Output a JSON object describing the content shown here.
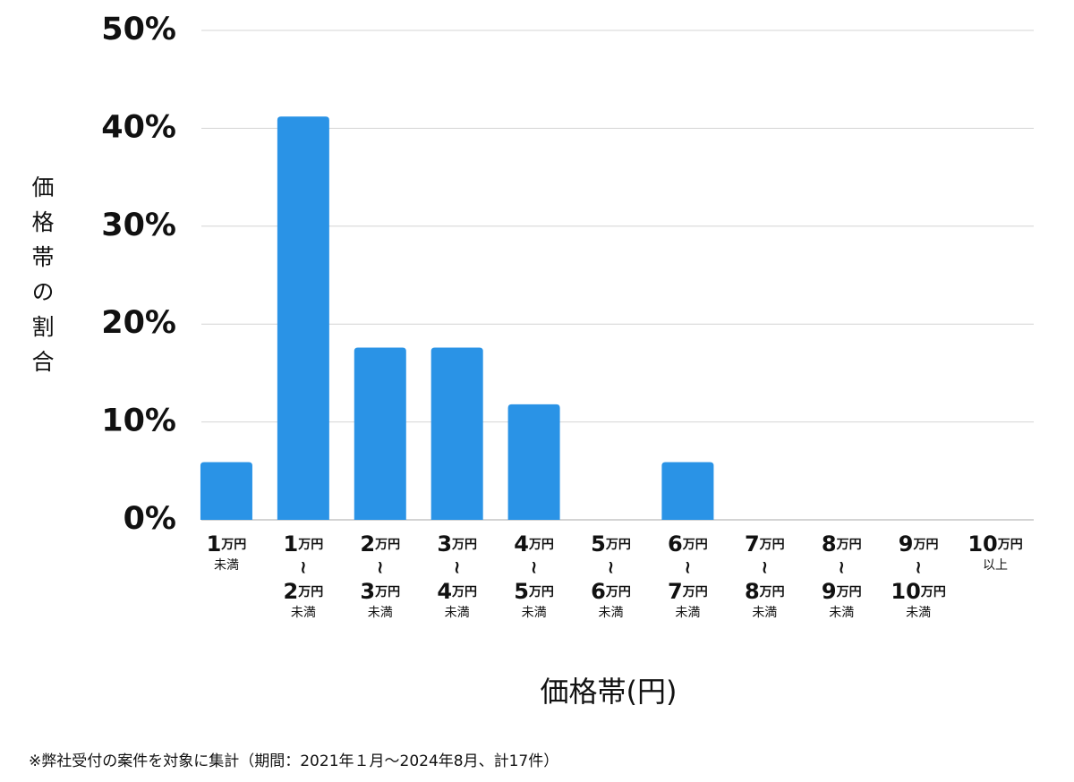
{
  "chart_data": {
    "type": "bar",
    "y_label": "価格帯の割合",
    "x_label": "価格帯(円)",
    "footnote": "※弊社受付の案件を対象に集計（期間：2021年１月〜2024年8月、計17件）",
    "categories": [
      [
        "1万円",
        "未満"
      ],
      [
        "1万円",
        "≀",
        "2万円",
        "未満"
      ],
      [
        "2万円",
        "≀",
        "3万円",
        "未満"
      ],
      [
        "3万円",
        "≀",
        "4万円",
        "未満"
      ],
      [
        "4万円",
        "≀",
        "5万円",
        "未満"
      ],
      [
        "5万円",
        "≀",
        "6万円",
        "未満"
      ],
      [
        "6万円",
        "≀",
        "7万円",
        "未満"
      ],
      [
        "7万円",
        "≀",
        "8万円",
        "未満"
      ],
      [
        "8万円",
        "≀",
        "9万円",
        "未満"
      ],
      [
        "9万円",
        "≀",
        "10万円",
        "未満"
      ],
      [
        "10万円",
        "以上"
      ]
    ],
    "values": [
      5.9,
      41.2,
      17.6,
      17.6,
      11.8,
      0,
      5.9,
      0,
      0,
      0,
      0
    ],
    "color": "#2a93e6",
    "ylim": [
      0,
      50
    ],
    "yticks": [
      {
        "value": 0,
        "label": "0%"
      },
      {
        "value": 10,
        "label": "10%"
      },
      {
        "value": 20,
        "label": "20%"
      },
      {
        "value": 30,
        "label": "30%"
      },
      {
        "value": 40,
        "label": "40%"
      },
      {
        "value": 50,
        "label": "50%"
      }
    ],
    "grid": true
  }
}
